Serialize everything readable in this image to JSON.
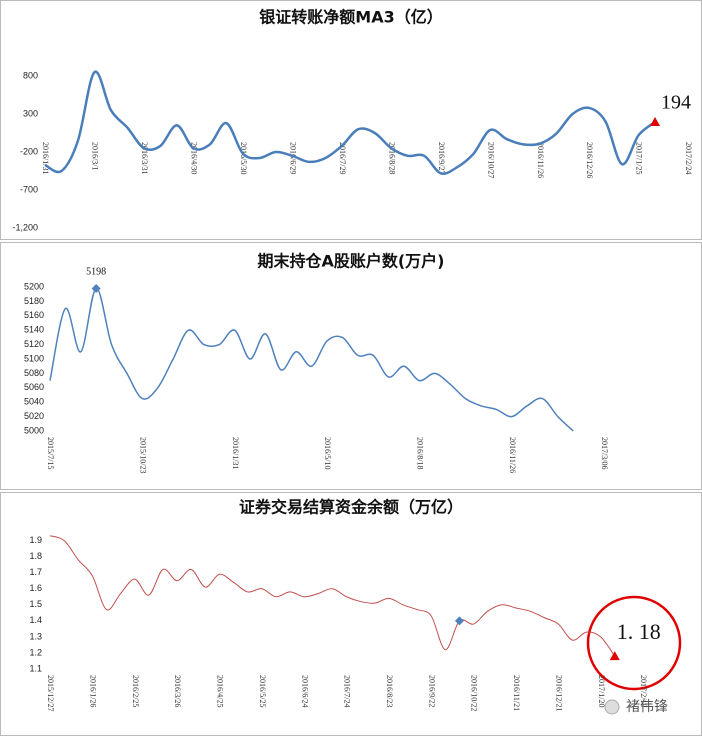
{
  "chart_data": [
    {
      "type": "line",
      "title": "银证转账净额MA3（亿）",
      "categories": [
        "2016/1/31",
        null,
        null,
        "2016/3/1",
        null,
        null,
        "2016/3/31",
        null,
        null,
        "2016/4/30",
        null,
        null,
        "2016/5/30",
        null,
        null,
        "2016/6/29",
        null,
        null,
        "2016/7/29",
        null,
        null,
        "2016/8/28",
        null,
        null,
        "2016/9/27",
        null,
        null,
        "2016/10/27",
        null,
        null,
        "2016/11/26",
        null,
        null,
        "2016/12/26",
        null,
        null,
        "2017/1/25",
        null,
        null,
        "2017/2/24"
      ],
      "values": [
        -370,
        -450,
        -50,
        850,
        350,
        120,
        -150,
        -120,
        150,
        -150,
        -100,
        180,
        -220,
        -280,
        -200,
        -250,
        -330,
        -280,
        -120,
        100,
        50,
        -150,
        -250,
        -250,
        -480,
        -400,
        -220,
        90,
        -30,
        -100,
        -90,
        40,
        300,
        380,
        200,
        -360,
        20,
        194,
        null,
        null
      ],
      "color": "#4a7ebb",
      "ylim": [
        -1200,
        1300
      ],
      "yticks": [
        800,
        300,
        -200,
        -700,
        {
          "value": -1200,
          "label": "-1,200"
        }
      ],
      "markers": [
        {
          "index": 37,
          "shape": "triangle",
          "color": "#e00000",
          "label": true
        }
      ]
    },
    {
      "type": "line",
      "title": "期末持仓A股账户数(万户)",
      "categories": [
        "2015/7/15",
        null,
        null,
        null,
        null,
        null,
        "2015/10/23",
        null,
        null,
        null,
        null,
        null,
        "2016/1/31",
        null,
        null,
        null,
        null,
        null,
        "2016/5/10",
        null,
        null,
        null,
        null,
        null,
        "2016/8/18",
        null,
        null,
        null,
        null,
        null,
        "2016/11/26",
        null,
        null,
        null,
        null,
        null,
        "2017/3/06"
      ],
      "values": [
        5070,
        5170,
        5110,
        5198,
        5120,
        5080,
        5045,
        5060,
        5100,
        5140,
        5120,
        5120,
        5140,
        5100,
        5135,
        5085,
        5110,
        5090,
        5125,
        5130,
        5105,
        5105,
        5075,
        5090,
        5070,
        5080,
        5065,
        5045,
        5035,
        5030,
        5020,
        5035,
        5045,
        5020,
        5000,
        null,
        null
      ],
      "color": "#4f81bd",
      "ylim": [
        5000,
        5200
      ],
      "yticks": [
        5000,
        5020,
        5040,
        5060,
        5080,
        5100,
        5120,
        5140,
        5160,
        5180,
        5200
      ],
      "markers": [
        {
          "index": 3,
          "shape": "diamond",
          "color": "#4f81bd",
          "label": true
        }
      ]
    },
    {
      "type": "line",
      "title": "证券交易结算资金余额（万亿）",
      "categories": [
        "2015/12/27",
        null,
        null,
        "2016/1/26",
        null,
        null,
        "2016/2/25",
        null,
        null,
        "2016/3/26",
        null,
        null,
        "2016/4/25",
        null,
        null,
        "2016/5/25",
        null,
        null,
        "2016/6/24",
        null,
        null,
        "2016/7/24",
        null,
        null,
        "2016/8/23",
        null,
        null,
        "2016/9/22",
        null,
        null,
        "2016/10/22",
        null,
        null,
        "2016/11/21",
        null,
        null,
        "2016/12/21",
        null,
        null,
        "2017/1/20",
        null,
        null,
        "2017/2/19"
      ],
      "values": [
        1.93,
        1.9,
        1.78,
        1.68,
        1.47,
        1.57,
        1.66,
        1.56,
        1.72,
        1.65,
        1.72,
        1.61,
        1.69,
        1.64,
        1.58,
        1.6,
        1.55,
        1.58,
        1.55,
        1.57,
        1.6,
        1.55,
        1.52,
        1.51,
        1.54,
        1.5,
        1.47,
        1.43,
        1.22,
        1.4,
        1.38,
        1.46,
        1.5,
        1.48,
        1.46,
        1.42,
        1.38,
        1.28,
        1.33,
        1.3,
        1.18,
        null,
        null
      ],
      "value_labels": [
        null,
        null,
        null,
        null,
        null,
        null,
        null,
        null,
        null,
        null,
        null,
        null,
        null,
        null,
        null,
        null,
        null,
        null,
        null,
        null,
        null,
        null,
        null,
        null,
        null,
        null,
        null,
        null,
        null,
        null,
        null,
        null,
        null,
        null,
        null,
        null,
        null,
        null,
        null,
        null,
        "1. 18",
        null,
        null
      ],
      "color": "#c0504d",
      "ylim": [
        1.1,
        2.0
      ],
      "yticks": [
        1.1,
        1.2,
        1.3,
        1.4,
        1.5,
        1.6,
        1.7,
        1.8,
        1.9
      ],
      "markers": [
        {
          "index": 29,
          "shape": "diamond",
          "color": "#4f81bd",
          "label": false
        },
        {
          "index": 40,
          "shape": "triangle",
          "color": "#e00000",
          "label": true
        }
      ]
    }
  ],
  "watermark": "褚伟锋"
}
